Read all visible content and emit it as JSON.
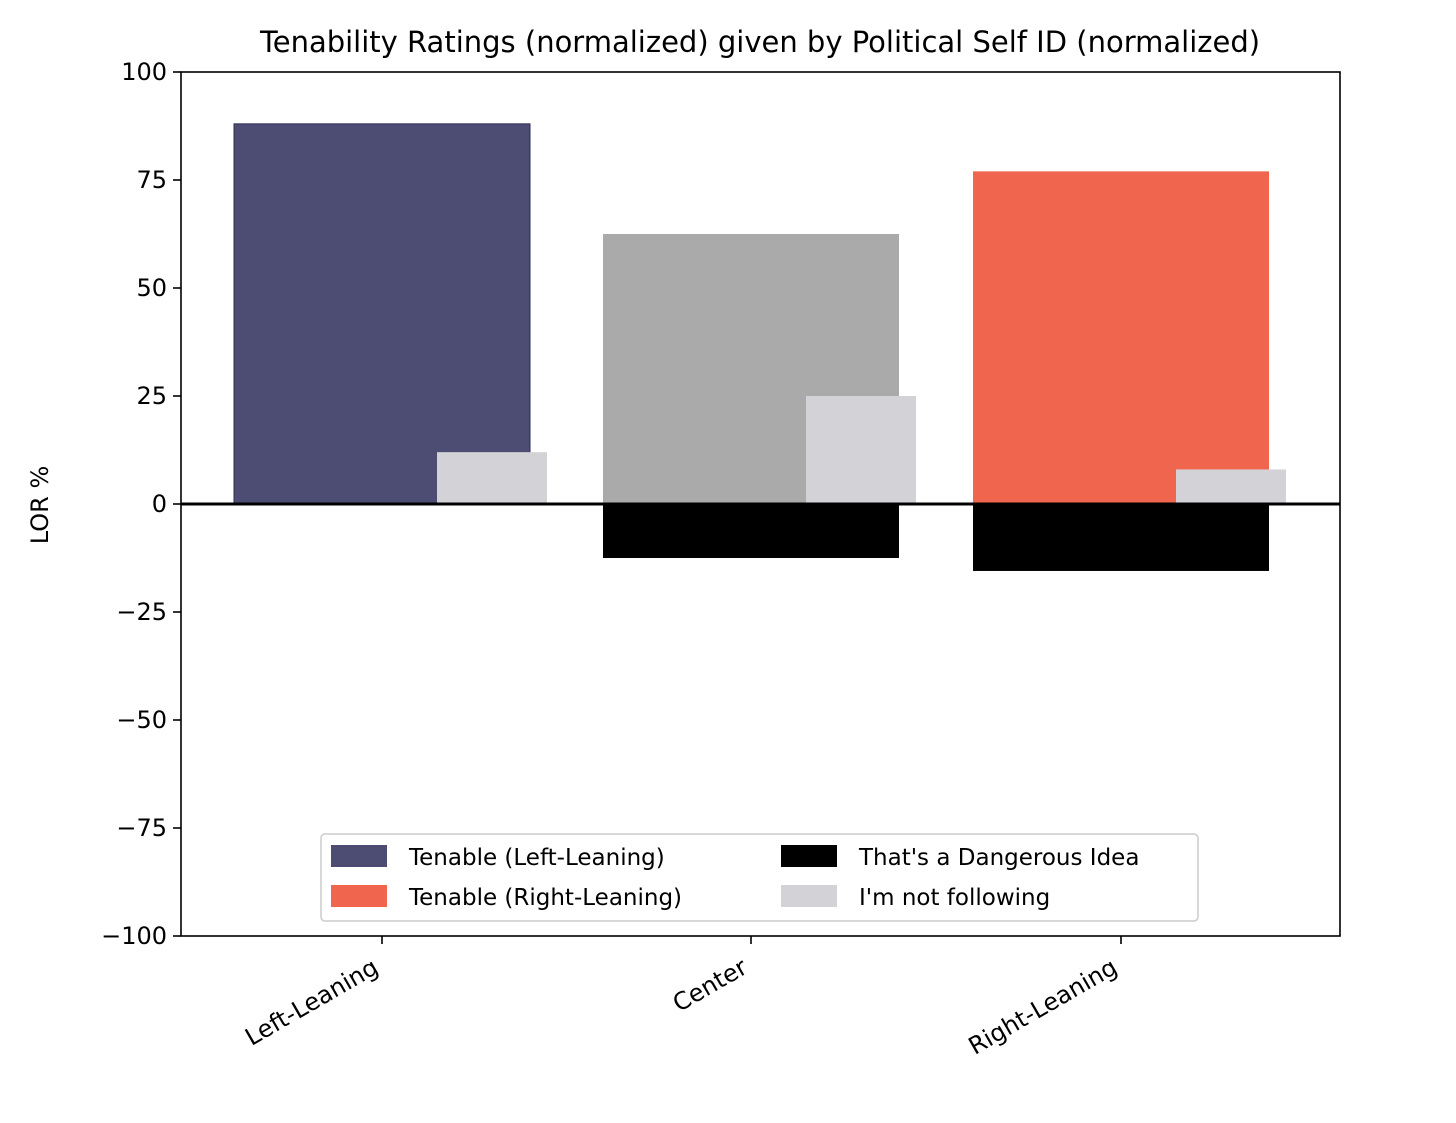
{
  "chart_data": {
    "type": "bar",
    "title": "Tenability Ratings (normalized) given by Political Self ID (normalized)",
    "xlabel": "",
    "ylabel": "LOR %",
    "ylim": [
      -100,
      100
    ],
    "yticks": [
      100,
      75,
      50,
      25,
      0,
      -25,
      -50,
      -75,
      -100
    ],
    "ytick_labels": [
      "100",
      "75",
      "50",
      "25",
      "0",
      "−25",
      "−50",
      "−75",
      "−100"
    ],
    "categories": [
      "Left-Leaning",
      "Center",
      "Right-Leaning"
    ],
    "series": [
      {
        "name": "Tenable",
        "values": [
          88,
          62.5,
          77
        ],
        "colors": [
          "#4d4d73",
          "#aaaaaa",
          "#f0654d"
        ],
        "placement": "main"
      },
      {
        "name": "That's a Dangerous Idea",
        "values": [
          0,
          -12.5,
          -15.5
        ],
        "color": "#000000",
        "placement": "main"
      },
      {
        "name": "I'm not following",
        "values": [
          12,
          25,
          8
        ],
        "color": "#d3d3d7",
        "placement": "offset"
      }
    ],
    "zero_line": true,
    "grid": false,
    "legend": {
      "location": "lower center",
      "entries": [
        {
          "label": "Tenable (Left-Leaning)",
          "color": "#4d4d73"
        },
        {
          "label": "Tenable (Right-Leaning)",
          "color": "#f0654d"
        },
        {
          "label": "That's a Dangerous Idea",
          "color": "#000000"
        },
        {
          "label": "I'm not following",
          "color": "#d3d3d7"
        }
      ]
    }
  }
}
